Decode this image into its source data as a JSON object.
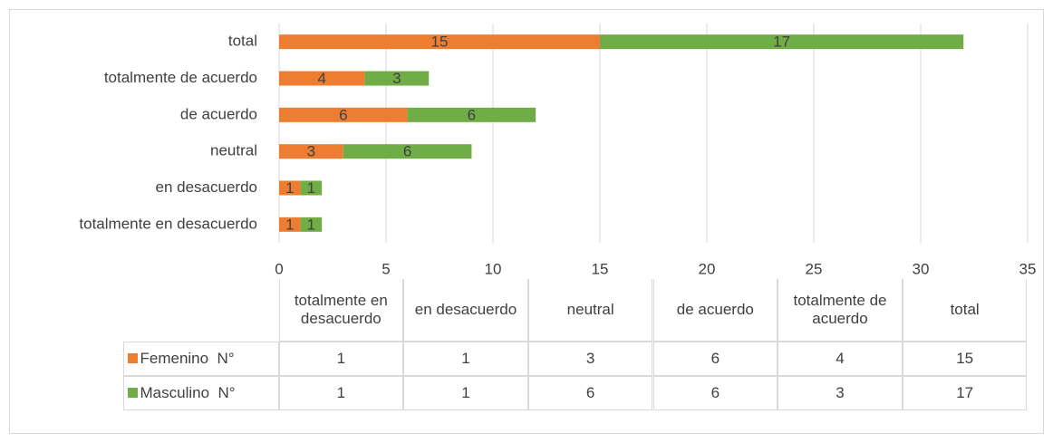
{
  "chart_data": {
    "type": "bar",
    "orientation": "horizontal",
    "stacked": true,
    "categories": [
      "totalmente en desacuerdo",
      "en desacuerdo",
      "neutral",
      "de acuerdo",
      "totalmente de acuerdo",
      "total"
    ],
    "series": [
      {
        "name": "Femenino  N°",
        "color": "#ed7d31",
        "values": [
          1,
          1,
          3,
          6,
          4,
          15
        ]
      },
      {
        "name": "Masculino  N°",
        "color": "#70ad47",
        "values": [
          1,
          1,
          6,
          6,
          3,
          17
        ]
      }
    ],
    "xlim": [
      0,
      35
    ],
    "xticks": [
      0,
      5,
      10,
      15,
      20,
      25,
      30,
      35
    ],
    "grid": true,
    "data_table": true
  }
}
